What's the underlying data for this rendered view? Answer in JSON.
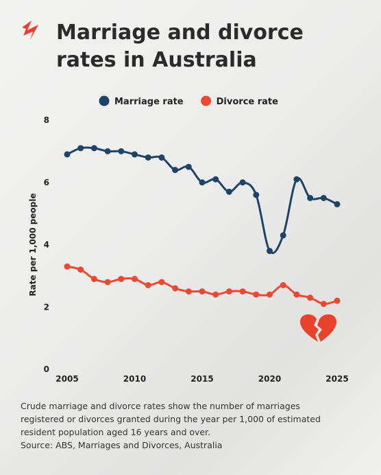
{
  "chart_data": {
    "type": "line",
    "title": "Marriage and divorce rates in Australia",
    "y_label": "Rate per 1,000 people",
    "x": [
      2005,
      2006,
      2007,
      2008,
      2009,
      2010,
      2011,
      2012,
      2013,
      2014,
      2015,
      2016,
      2017,
      2018,
      2019,
      2020,
      2021,
      2022,
      2023,
      2024,
      2025
    ],
    "series": [
      {
        "name": "Marriage rate",
        "color": "#1d4466",
        "values": [
          6.9,
          7.1,
          7.1,
          7.0,
          7.0,
          6.9,
          6.8,
          6.8,
          6.4,
          6.5,
          6.0,
          6.1,
          5.7,
          6.0,
          5.6,
          3.8,
          4.3,
          6.1,
          5.5,
          5.5,
          5.3
        ]
      },
      {
        "name": "Divorce rate",
        "color": "#ea4a34",
        "values": [
          3.3,
          3.2,
          2.9,
          2.8,
          2.9,
          2.9,
          2.7,
          2.8,
          2.6,
          2.5,
          2.5,
          2.4,
          2.5,
          2.5,
          2.4,
          2.4,
          2.7,
          2.4,
          2.3,
          2.1,
          2.2
        ]
      }
    ],
    "xlim": [
      2005,
      2025
    ],
    "xticks": [
      2005,
      2010,
      2015,
      2020,
      2025
    ],
    "ylim": [
      0,
      8
    ],
    "yticks": [
      0,
      2,
      4,
      6,
      8
    ],
    "caption": "Crude marriage and divorce rates show the number of marriages registered or divorces granted during the year per 1,000 of estimated resident population aged 16 years and over.",
    "source": "Source: ABS, Marriages and Divorces, Australia"
  }
}
